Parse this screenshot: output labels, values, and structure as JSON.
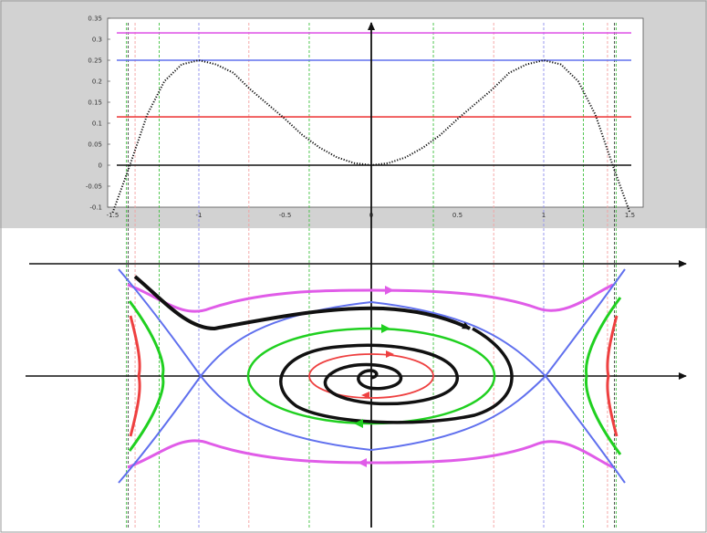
{
  "colors": {
    "top_panel_bg": "#d2d2d2",
    "plot_bg": "#ffffff",
    "magenta": "#e05ce8",
    "blue": "#6070ee",
    "red": "#ee4040",
    "green": "#20d020",
    "black": "#111111",
    "red_guide": "#f3a0a0",
    "green_guide": "#40c040",
    "blue_guide": "#9090ee",
    "black_guide": "#444444"
  },
  "chart_data": [
    {
      "type": "line",
      "title": "",
      "xlabel": "",
      "ylabel": "",
      "xlim": [
        -1.5,
        1.5
      ],
      "ylim": [
        -0.1,
        0.35
      ],
      "x_ticks": [
        "-1.5",
        "-1",
        "-0.5",
        "0",
        "0.5",
        "1",
        "1.5"
      ],
      "y_ticks": [
        "0.35",
        "0.3",
        "0.25",
        "0.2",
        "0.15",
        "0.1",
        "0.05",
        "0",
        "-0.05",
        "-0.1"
      ],
      "potential": {
        "style": "dotted",
        "x": [
          -1.5,
          -1.4,
          -1.3,
          -1.2,
          -1.1,
          -1.0,
          -0.9,
          -0.8,
          -0.7,
          -0.6,
          -0.5,
          -0.4,
          -0.3,
          -0.2,
          -0.1,
          0,
          0.1,
          0.2,
          0.3,
          0.4,
          0.5,
          0.6,
          0.7,
          0.8,
          0.9,
          1.0,
          1.1,
          1.2,
          1.3,
          1.4,
          1.5
        ],
        "y": [
          -0.14,
          0.0,
          0.12,
          0.2,
          0.24,
          0.25,
          0.24,
          0.22,
          0.18,
          0.145,
          0.11,
          0.072,
          0.042,
          0.019,
          0.005,
          0.0,
          0.005,
          0.019,
          0.042,
          0.072,
          0.11,
          0.145,
          0.18,
          0.22,
          0.24,
          0.25,
          0.24,
          0.2,
          0.12,
          0.0,
          -0.14
        ]
      },
      "energy_levels": [
        {
          "color": "magenta",
          "value": 0.315
        },
        {
          "color": "blue",
          "value": 0.25
        },
        {
          "color": "red",
          "value": 0.115
        },
        {
          "color": "black",
          "value": 0.0
        }
      ],
      "grid": false,
      "legend": "none"
    },
    {
      "type": "line",
      "title": "",
      "xlabel": "",
      "ylabel": "",
      "description_of_curves": [
        {
          "color": "magenta",
          "kind": "open orbits above and below separatrix"
        },
        {
          "color": "blue",
          "kind": "separatrix through saddles at x = -1 and x = 1"
        },
        {
          "color": "green",
          "kind": "closed orbit around center"
        },
        {
          "color": "red",
          "kind": "small closed orbit around center"
        },
        {
          "color": "black",
          "kind": "spiral trajectory"
        }
      ],
      "saddles_x": [
        -1,
        1
      ],
      "center_x": 0,
      "grid": false,
      "legend": "none"
    }
  ]
}
